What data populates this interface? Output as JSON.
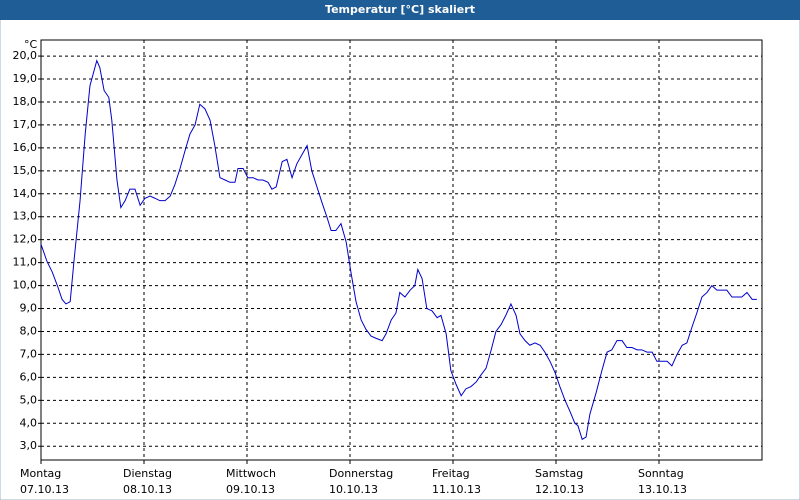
{
  "chart_data": {
    "type": "line",
    "title": "Temperatur [°C] skaliert",
    "ylabel": "°C",
    "color": "#0000cc",
    "grid": true,
    "xlim": [
      0,
      168
    ],
    "ylim": [
      2.4,
      20.7
    ],
    "xticks": [
      {
        "value": 0,
        "label": [
          "Montag",
          "07.10.13"
        ]
      },
      {
        "value": 24,
        "label": [
          "Dienstag",
          "08.10.13"
        ]
      },
      {
        "value": 48,
        "label": [
          "Mittwoch",
          "09.10.13"
        ]
      },
      {
        "value": 72,
        "label": [
          "Donnerstag",
          "10.10.13"
        ]
      },
      {
        "value": 96,
        "label": [
          "Freitag",
          "11.10.13"
        ]
      },
      {
        "value": 120,
        "label": [
          "Samstag",
          "12.10.13"
        ]
      },
      {
        "value": 144,
        "label": [
          "Sonntag",
          "13.10.13"
        ]
      }
    ],
    "yticks": [
      {
        "value": 3,
        "label": "3,0"
      },
      {
        "value": 4,
        "label": "4,0"
      },
      {
        "value": 5,
        "label": "5,0"
      },
      {
        "value": 6,
        "label": "6,0"
      },
      {
        "value": 7,
        "label": "7,0"
      },
      {
        "value": 8,
        "label": "8,0"
      },
      {
        "value": 9,
        "label": "9,0"
      },
      {
        "value": 10,
        "label": "10,0"
      },
      {
        "value": 11,
        "label": "11,0"
      },
      {
        "value": 12,
        "label": "12,0"
      },
      {
        "value": 13,
        "label": "13,0"
      },
      {
        "value": 14,
        "label": "14,0"
      },
      {
        "value": 15,
        "label": "15,0"
      },
      {
        "value": 16,
        "label": "16,0"
      },
      {
        "value": 17,
        "label": "17,0"
      },
      {
        "value": 18,
        "label": "18,0"
      },
      {
        "value": 19,
        "label": "19,0"
      },
      {
        "value": 20,
        "label": "20,0"
      }
    ],
    "x": [
      0,
      1.4,
      2.6,
      4.0,
      4.9,
      5.8,
      6.8,
      7.7,
      9.1,
      10.3,
      11.4,
      13.0,
      13.7,
      14.7,
      15.8,
      16.5,
      17.7,
      18.6,
      19.6,
      20.7,
      21.9,
      23.1,
      24.2,
      25.4,
      26.6,
      27.7,
      28.9,
      30.1,
      31.2,
      32.4,
      33.6,
      34.7,
      35.9,
      37.0,
      38.2,
      39.4,
      40.5,
      41.7,
      42.9,
      44.0,
      45.2,
      45.9,
      47.1,
      48.2,
      49.4,
      50.6,
      51.7,
      52.9,
      53.8,
      54.8,
      56.2,
      57.3,
      58.5,
      59.6,
      60.8,
      62.0,
      63.1,
      64.3,
      65.5,
      66.6,
      67.6,
      68.7,
      69.9,
      71.1,
      72.2,
      73.4,
      74.6,
      75.7,
      76.9,
      78.1,
      79.5,
      80.4,
      81.6,
      82.7,
      83.6,
      84.8,
      86.0,
      87.1,
      87.8,
      88.8,
      89.9,
      91.1,
      92.3,
      93.2,
      94.4,
      95.5,
      96.7,
      97.9,
      99.0,
      100.2,
      101.4,
      102.5,
      103.7,
      104.9,
      106.0,
      107.2,
      108.3,
      109.5,
      110.7,
      111.6,
      112.8,
      113.9,
      115.1,
      116.3,
      117.4,
      118.6,
      119.8,
      120.9,
      122.1,
      123.3,
      124.4,
      125.1,
      126.1,
      127.0,
      127.9,
      129.3,
      130.7,
      131.9,
      133.0,
      134.2,
      135.4,
      136.5,
      137.7,
      138.9,
      140.0,
      141.2,
      142.4,
      143.5,
      144.7,
      145.9,
      147.0,
      148.2,
      149.4,
      150.5,
      151.7,
      152.8,
      154.0,
      155.2,
      156.3,
      157.5,
      158.7,
      159.8,
      161.0,
      162.2,
      163.3,
      164.5,
      165.7,
      166.8
    ],
    "values": [
      11.8,
      11.05,
      10.6,
      9.9,
      9.4,
      9.2,
      9.3,
      11.1,
      13.7,
      16.6,
      18.7,
      19.8,
      19.5,
      18.5,
      18.2,
      17.2,
      14.6,
      13.4,
      13.7,
      14.2,
      14.2,
      13.5,
      13.8,
      13.9,
      13.8,
      13.7,
      13.7,
      13.9,
      14.4,
      15.1,
      15.9,
      16.6,
      17.0,
      17.9,
      17.7,
      17.2,
      16.1,
      14.7,
      14.6,
      14.5,
      14.5,
      15.1,
      15.1,
      14.7,
      14.7,
      14.6,
      14.6,
      14.5,
      14.2,
      14.3,
      15.4,
      15.5,
      14.7,
      15.3,
      15.7,
      16.1,
      15.0,
      14.3,
      13.6,
      13.0,
      12.4,
      12.4,
      12.7,
      11.9,
      10.6,
      9.3,
      8.5,
      8.1,
      7.8,
      7.7,
      7.6,
      7.9,
      8.5,
      8.8,
      9.7,
      9.5,
      9.8,
      10.0,
      10.7,
      10.3,
      9.0,
      8.9,
      8.6,
      8.7,
      7.9,
      6.3,
      5.7,
      5.2,
      5.5,
      5.6,
      5.8,
      6.1,
      6.4,
      7.2,
      8.0,
      8.3,
      8.7,
      9.2,
      8.7,
      7.9,
      7.6,
      7.4,
      7.5,
      7.4,
      7.1,
      6.7,
      6.2,
      5.6,
      5.0,
      4.5,
      4.0,
      3.9,
      3.3,
      3.4,
      4.4,
      5.3,
      6.3,
      7.1,
      7.2,
      7.6,
      7.6,
      7.3,
      7.3,
      7.2,
      7.2,
      7.1,
      7.1,
      6.7,
      6.7,
      6.7,
      6.5,
      7.0,
      7.4,
      7.5,
      8.2,
      8.8,
      9.5,
      9.7,
      10.0,
      9.8,
      9.8,
      9.8,
      9.5,
      9.5,
      9.5,
      9.7,
      9.4,
      9.4
    ]
  }
}
